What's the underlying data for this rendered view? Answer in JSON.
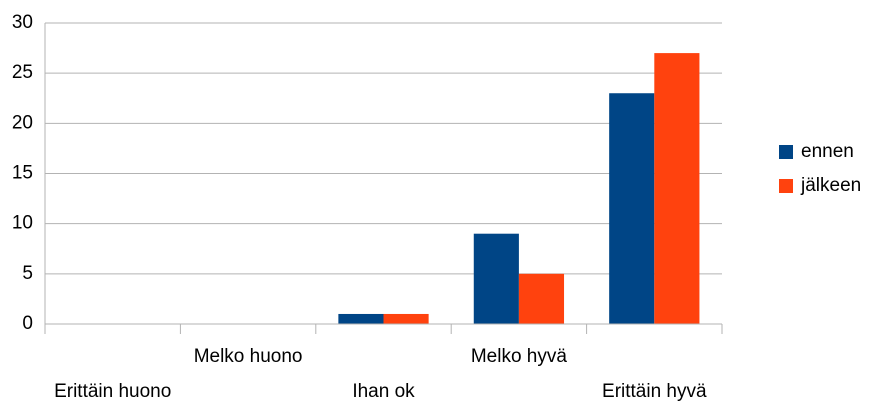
{
  "chart_data": {
    "type": "bar",
    "categories": [
      "Erittäin huono",
      "Melko huono",
      "Ihan ok",
      "Melko hyvä",
      "Erittäin hyvä"
    ],
    "series": [
      {
        "name": "ennen",
        "color": "#004586",
        "values": [
          0,
          0,
          1,
          9,
          23
        ]
      },
      {
        "name": "jälkeen",
        "color": "#ff420e",
        "values": [
          0,
          0,
          1,
          5,
          27
        ]
      }
    ],
    "ylim": [
      0,
      30
    ],
    "yticks": [
      0,
      5,
      10,
      15,
      20,
      25,
      30
    ],
    "grid": true,
    "legend": "right"
  }
}
